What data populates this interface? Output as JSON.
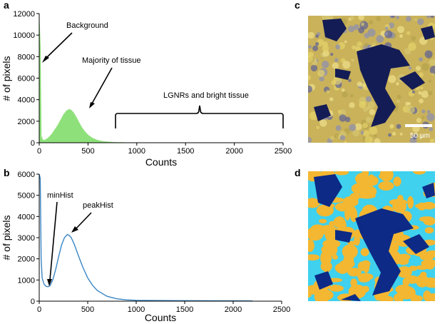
{
  "panels": {
    "a": "a",
    "b": "b",
    "c": "c",
    "d": "d"
  },
  "scale_bar_label": "50 μm",
  "colors": {
    "hist_a_fill": "#8ee07a",
    "hist_b_line": "#3a86c4",
    "micro_bg": "#c9b25a",
    "micro_dark": "#141c55",
    "seg_orange": "#f4b731",
    "seg_cyan": "#3fd1ee",
    "seg_navy": "#0c2a86"
  },
  "chart_data": [
    {
      "type": "area",
      "panel": "a",
      "xlabel": "Counts",
      "ylabel": "# of pixels",
      "xlim": [
        0,
        2500
      ],
      "ylim": [
        0,
        12000
      ],
      "x_ticks": [
        0,
        500,
        1000,
        1500,
        2000,
        2500
      ],
      "y_ticks": [
        0,
        2000,
        4000,
        6000,
        8000,
        10000,
        12000
      ],
      "x": [
        0,
        10,
        20,
        40,
        60,
        80,
        100,
        130,
        160,
        190,
        220,
        250,
        280,
        310,
        330,
        350,
        370,
        400,
        430,
        460,
        500,
        550,
        600,
        650,
        700,
        750,
        800,
        850,
        900
      ],
      "values": [
        11500,
        9000,
        600,
        200,
        250,
        350,
        500,
        800,
        1200,
        1600,
        2100,
        2600,
        2950,
        3100,
        3000,
        2800,
        2500,
        2000,
        1500,
        1100,
        700,
        400,
        220,
        120,
        70,
        40,
        20,
        10,
        0
      ],
      "annotations": [
        {
          "text": "Background",
          "x": 15,
          "y": 7300
        },
        {
          "text": "Majority of tissue",
          "x": 270,
          "y": 3500
        },
        {
          "text": "LGNRs and bright tissue",
          "x": 1650,
          "y": 2200
        }
      ]
    },
    {
      "type": "line",
      "panel": "b",
      "xlabel": "Counts",
      "ylabel": "# of pixels",
      "xlim": [
        0,
        2500
      ],
      "ylim": [
        0,
        6000
      ],
      "x_ticks": [
        0,
        500,
        1000,
        1500,
        2000,
        2500
      ],
      "y_ticks": [
        0,
        1000,
        2000,
        3000,
        4000,
        5000,
        6000
      ],
      "x": [
        0,
        10,
        20,
        30,
        50,
        70,
        90,
        110,
        140,
        170,
        200,
        230,
        260,
        290,
        310,
        330,
        360,
        400,
        450,
        500,
        550,
        600,
        700,
        800,
        900,
        1000,
        1200,
        1500,
        1800,
        2100,
        2200
      ],
      "values": [
        6000,
        5800,
        2000,
        1100,
        800,
        700,
        680,
        720,
        1000,
        1500,
        2100,
        2650,
        3000,
        3150,
        3100,
        3000,
        2700,
        2200,
        1600,
        1100,
        750,
        500,
        230,
        110,
        60,
        40,
        30,
        25,
        20,
        15,
        10
      ],
      "annotations": [
        {
          "text": "minHist",
          "x": 90,
          "y": 680
        },
        {
          "text": "peakHist",
          "x": 300,
          "y": 3150
        }
      ]
    }
  ]
}
